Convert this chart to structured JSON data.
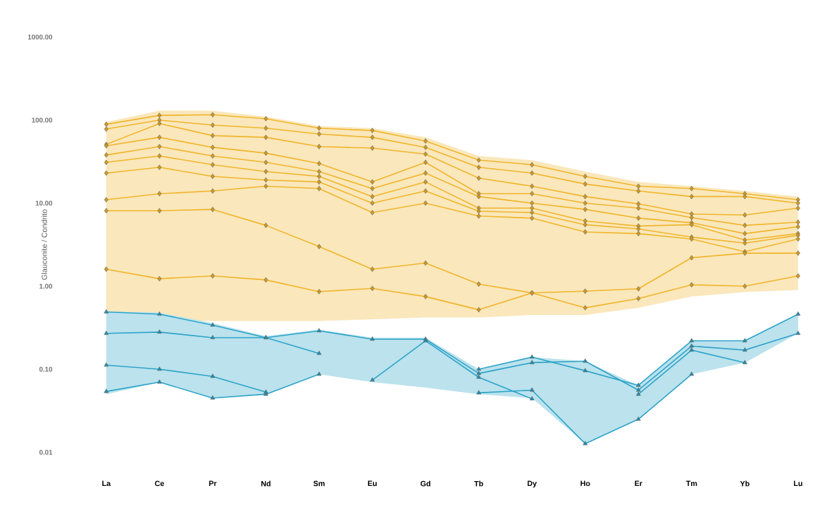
{
  "chart_data": {
    "type": "line",
    "ylabel": "Glauconite / Condrito",
    "categories": [
      "La",
      "Ce",
      "Pr",
      "Nd",
      "Sm",
      "Eu",
      "Gd",
      "Tb",
      "Dy",
      "Ho",
      "Er",
      "Tm",
      "Yb",
      "Lu"
    ],
    "log": "y",
    "ylim": [
      0.01,
      1000
    ],
    "yticks": [
      {
        "value": 0.01,
        "label": "0.01"
      },
      {
        "value": 0.1,
        "label": "0.10"
      },
      {
        "value": 1,
        "label": "1.00"
      },
      {
        "value": 10,
        "label": "10.00"
      },
      {
        "value": 100,
        "label": "100.00"
      },
      {
        "value": 1000,
        "label": "1000.00"
      }
    ],
    "series": [
      {
        "marker": "diamond",
        "color": "#f0b429",
        "values": [
          89,
          114,
          116,
          104,
          80,
          75,
          56,
          33,
          29,
          21,
          16,
          15,
          13,
          11
        ],
        "lower": [
          0.38,
          0.38,
          0.38,
          0.38,
          0.38,
          0.4,
          0.42,
          0.42,
          0.45,
          0.45,
          0.55,
          0.75,
          0.85,
          0.9
        ],
        "upper": [
          95,
          130,
          130,
          110,
          85,
          80,
          62,
          37,
          33,
          24,
          18,
          16,
          14,
          12
        ]
      },
      {
        "marker": "diamond",
        "color": "#f0b429",
        "values": [
          78,
          100,
          87,
          80,
          68,
          62,
          47,
          27,
          23,
          17,
          14,
          12,
          12,
          10
        ]
      },
      {
        "marker": "diamond",
        "color": "#f0b429",
        "values": [
          51,
          91,
          65,
          62,
          48,
          46,
          39,
          20,
          16,
          12,
          9.8,
          7.4,
          7.2,
          8.7
        ]
      },
      {
        "marker": "diamond",
        "color": "#f0b429",
        "values": [
          49,
          62,
          47,
          40,
          30,
          18,
          31,
          13,
          13,
          10,
          8.7,
          6.7,
          5.4,
          5.9
        ]
      },
      {
        "marker": "diamond",
        "color": "#f0b429",
        "values": [
          38,
          48,
          37,
          31,
          24,
          15,
          23,
          12,
          10,
          8.4,
          6.6,
          5.8,
          4.3,
          5.2
        ]
      },
      {
        "marker": "diamond",
        "color": "#f0b429",
        "values": [
          31,
          37,
          29,
          24,
          21,
          12,
          18,
          8.7,
          8.7,
          6.1,
          5.3,
          5.5,
          3.6,
          4.3
        ]
      },
      {
        "marker": "diamond",
        "color": "#f0b429",
        "values": [
          23,
          27,
          21,
          19,
          18,
          10,
          14,
          8.0,
          7.7,
          5.5,
          4.9,
          3.9,
          3.3,
          4.1
        ]
      },
      {
        "marker": "diamond",
        "color": "#f0b429",
        "values": [
          11,
          13,
          14,
          16,
          15,
          7.7,
          10,
          7.0,
          6.6,
          4.5,
          4.3,
          3.7,
          2.6,
          3.7
        ]
      },
      {
        "marker": "diamond",
        "color": "#f0b429",
        "values": [
          8.1,
          8.1,
          8.4,
          5.4,
          3.0,
          1.6,
          1.9,
          1.06,
          0.83,
          0.87,
          0.93,
          2.2,
          2.5,
          2.5
        ]
      },
      {
        "marker": "diamond",
        "color": "#f0b429",
        "values": [
          1.6,
          1.23,
          1.33,
          1.19,
          0.86,
          0.94,
          0.75,
          0.52,
          0.83,
          0.55,
          0.71,
          1.04,
          1.0,
          1.33
        ]
      },
      {
        "marker": "triangle",
        "color": "#2ba3c8",
        "values": [
          0.49,
          0.46,
          0.34,
          0.24,
          0.155,
          null,
          null,
          0.1,
          0.14,
          0.096,
          0.064,
          0.22,
          0.22,
          0.46
        ],
        "lower": [
          0.05,
          0.07,
          0.045,
          0.05,
          0.087,
          0.07,
          0.06,
          0.05,
          0.045,
          0.0127,
          0.025,
          0.087,
          0.12,
          0.27
        ],
        "upper": [
          0.5,
          0.48,
          0.36,
          0.25,
          0.3,
          0.24,
          0.24,
          0.1,
          0.14,
          0.125,
          0.064,
          0.22,
          0.22,
          0.46
        ]
      },
      {
        "marker": "triangle",
        "color": "#2ba3c8",
        "values": [
          0.27,
          0.28,
          0.24,
          0.24,
          0.29,
          0.23,
          0.23,
          0.089,
          0.12,
          0.125,
          0.056,
          0.19,
          0.17,
          0.27
        ]
      },
      {
        "marker": "triangle",
        "color": "#2ba3c8",
        "values": [
          0.112,
          0.1,
          0.082,
          0.053,
          null,
          0.074,
          0.22,
          0.08,
          0.044,
          null,
          0.05,
          0.17,
          0.12,
          null
        ]
      },
      {
        "marker": "triangle",
        "color": "#2ba3c8",
        "values": [
          0.054,
          0.07,
          0.045,
          0.05,
          0.087,
          null,
          null,
          0.052,
          0.056,
          0.0127,
          0.025,
          0.087,
          null,
          null
        ]
      }
    ]
  }
}
